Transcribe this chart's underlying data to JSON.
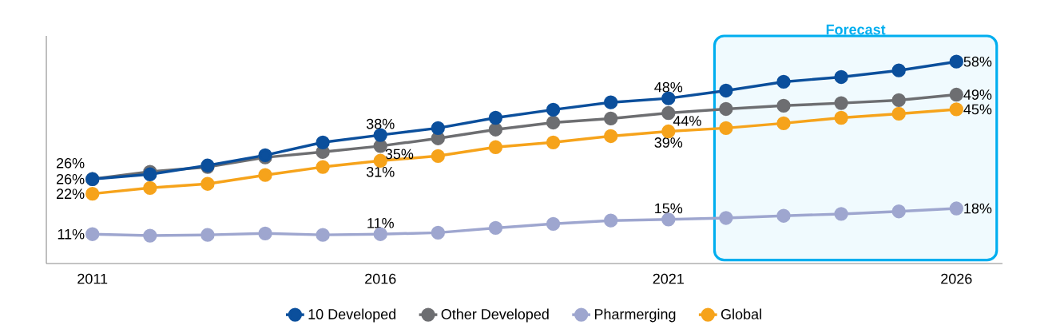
{
  "chart_data": {
    "type": "line",
    "x": [
      2011,
      2012,
      2013,
      2014,
      2015,
      2016,
      2017,
      2018,
      2019,
      2020,
      2021,
      2022,
      2023,
      2024,
      2025,
      2026
    ],
    "series": [
      {
        "name": "10 Developed",
        "color": "#0b4f9c",
        "values": [
          26,
          27.3,
          29.7,
          32.5,
          36,
          38,
          39.9,
          42.7,
          44.9,
          46.9,
          48,
          50.1,
          52.5,
          53.8,
          55.6,
          58
        ],
        "value_labels": [
          "26%",
          null,
          null,
          null,
          null,
          "38%",
          null,
          null,
          null,
          null,
          "48%",
          null,
          null,
          null,
          null,
          "58%"
        ]
      },
      {
        "name": "Other Developed",
        "color": "#6d6e71",
        "values": [
          26,
          28,
          29.3,
          31.9,
          33.4,
          35,
          37.1,
          39.5,
          41.4,
          42.5,
          44,
          45.1,
          46,
          46.7,
          47.5,
          49
        ],
        "value_labels": [
          "26%",
          null,
          null,
          null,
          null,
          "35%",
          null,
          null,
          null,
          null,
          "44%",
          null,
          null,
          null,
          null,
          "49%"
        ]
      },
      {
        "name": "Pharmerging",
        "color": "#9ea6cf",
        "values": [
          11,
          10.6,
          10.8,
          11.2,
          10.8,
          11,
          11.4,
          12.7,
          13.8,
          14.7,
          15,
          15.4,
          16,
          16.5,
          17.2,
          18
        ],
        "value_labels": [
          "11%",
          null,
          null,
          null,
          null,
          "11%",
          null,
          null,
          null,
          null,
          "15%",
          null,
          null,
          null,
          null,
          "18%"
        ]
      },
      {
        "name": "Global",
        "color": "#f6a31b",
        "values": [
          22,
          23.6,
          24.7,
          27.1,
          29.3,
          31,
          32.3,
          34.7,
          36,
          37.7,
          39,
          39.9,
          41.2,
          42.7,
          43.8,
          45
        ],
        "value_labels": [
          "22%",
          null,
          null,
          null,
          null,
          "31%",
          null,
          null,
          null,
          null,
          "39%",
          null,
          null,
          null,
          null,
          "45%"
        ]
      }
    ],
    "xlim": [
      2010.2,
      2026.8
    ],
    "ylim": [
      3,
      65
    ],
    "xticks": [
      2011,
      2016,
      2021,
      2026
    ],
    "bands": [
      {
        "axis": "x",
        "from": 2021.8,
        "to": 2026.7,
        "label": "Forecast",
        "color": "#00aeef"
      }
    ],
    "marker": "circle",
    "line_style": "solid",
    "grid": false,
    "legend": "bottom"
  }
}
